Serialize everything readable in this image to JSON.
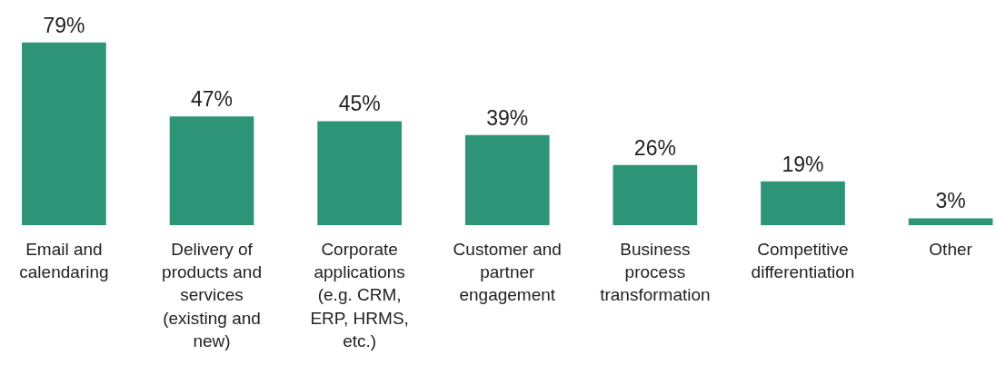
{
  "chart_data": {
    "type": "bar",
    "categories": [
      "Email and calendaring",
      "Delivery of products and services (existing and new)",
      "Corporate applications (e.g. CRM, ERP, HRMS, etc.)",
      "Customer and partner engagement",
      "Business process transformation",
      "Competitive differentiation",
      "Other"
    ],
    "values": [
      79,
      47,
      45,
      39,
      26,
      19,
      3
    ],
    "value_labels": [
      "79%",
      "47%",
      "45%",
      "39%",
      "26%",
      "19%",
      "3%"
    ],
    "color": "#2e9477",
    "grid": false
  }
}
